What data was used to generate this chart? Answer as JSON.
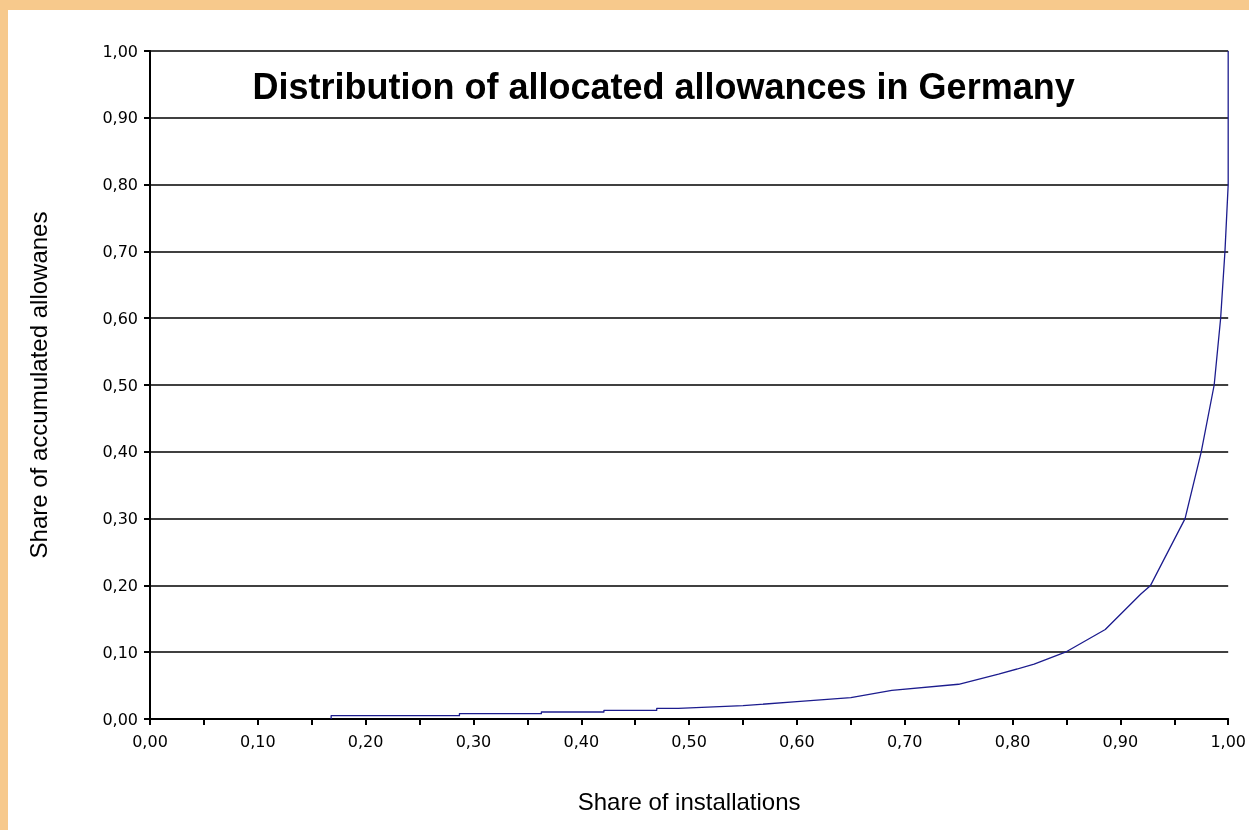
{
  "chart_data": {
    "type": "line",
    "title": "Distribution of allocated allowances in Germany",
    "xlabel": "Share of installations",
    "ylabel": "Share of accumulated allowanes",
    "series": [
      {
        "color": "#1c1c8e",
        "x": [
          0.168,
          0.168,
          0.287,
          0.287,
          0.363,
          0.363,
          0.421,
          0.421,
          0.47,
          0.47,
          0.49,
          0.55,
          0.6,
          0.65,
          0.688,
          0.75,
          0.787,
          0.82,
          0.849,
          0.886,
          0.919,
          0.928,
          0.96,
          0.975,
          0.987,
          0.993,
          0.997,
          1.0,
          1.0
        ],
        "values": [
          0,
          0.005,
          0.005,
          0.008,
          0.008,
          0.0105,
          0.0105,
          0.013,
          0.013,
          0.016,
          0.016,
          0.02,
          0.026,
          0.032,
          0.043,
          0.052,
          0.067,
          0.082,
          0.1,
          0.134,
          0.187,
          0.2,
          0.3,
          0.4,
          0.5,
          0.6,
          0.7,
          0.8,
          1.0
        ]
      }
    ],
    "xlim": [
      0,
      1
    ],
    "ylim": [
      0,
      1
    ],
    "xticks": [
      {
        "value": 0,
        "label": "0,00"
      },
      {
        "value": 0.05,
        "label": null
      },
      {
        "value": 0.1,
        "label": "0,10"
      },
      {
        "value": 0.15,
        "label": null
      },
      {
        "value": 0.2,
        "label": "0,20"
      },
      {
        "value": 0.25,
        "label": null
      },
      {
        "value": 0.3,
        "label": "0,30"
      },
      {
        "value": 0.35,
        "label": null
      },
      {
        "value": 0.4,
        "label": "0,40"
      },
      {
        "value": 0.45,
        "label": null
      },
      {
        "value": 0.5,
        "label": "0,50"
      },
      {
        "value": 0.55,
        "label": null
      },
      {
        "value": 0.6,
        "label": "0,60"
      },
      {
        "value": 0.65,
        "label": null
      },
      {
        "value": 0.7,
        "label": "0,70"
      },
      {
        "value": 0.75,
        "label": null
      },
      {
        "value": 0.8,
        "label": "0,80"
      },
      {
        "value": 0.85,
        "label": null
      },
      {
        "value": 0.9,
        "label": "0,90"
      },
      {
        "value": 0.95,
        "label": null
      },
      {
        "value": 1,
        "label": "1,00"
      }
    ],
    "yticks": [
      {
        "value": 0,
        "label": "0,00"
      },
      {
        "value": 0.1,
        "label": "0,10"
      },
      {
        "value": 0.2,
        "label": "0,20"
      },
      {
        "value": 0.3,
        "label": "0,30"
      },
      {
        "value": 0.4,
        "label": "0,40"
      },
      {
        "value": 0.5,
        "label": "0,50"
      },
      {
        "value": 0.6,
        "label": "0,60"
      },
      {
        "value": 0.7,
        "label": "0,70"
      },
      {
        "value": 0.8,
        "label": "0,80"
      },
      {
        "value": 0.9,
        "label": "0,90"
      },
      {
        "value": 1,
        "label": "1,00"
      }
    ],
    "grid": "y",
    "marker": "none",
    "line_style": "solid"
  }
}
